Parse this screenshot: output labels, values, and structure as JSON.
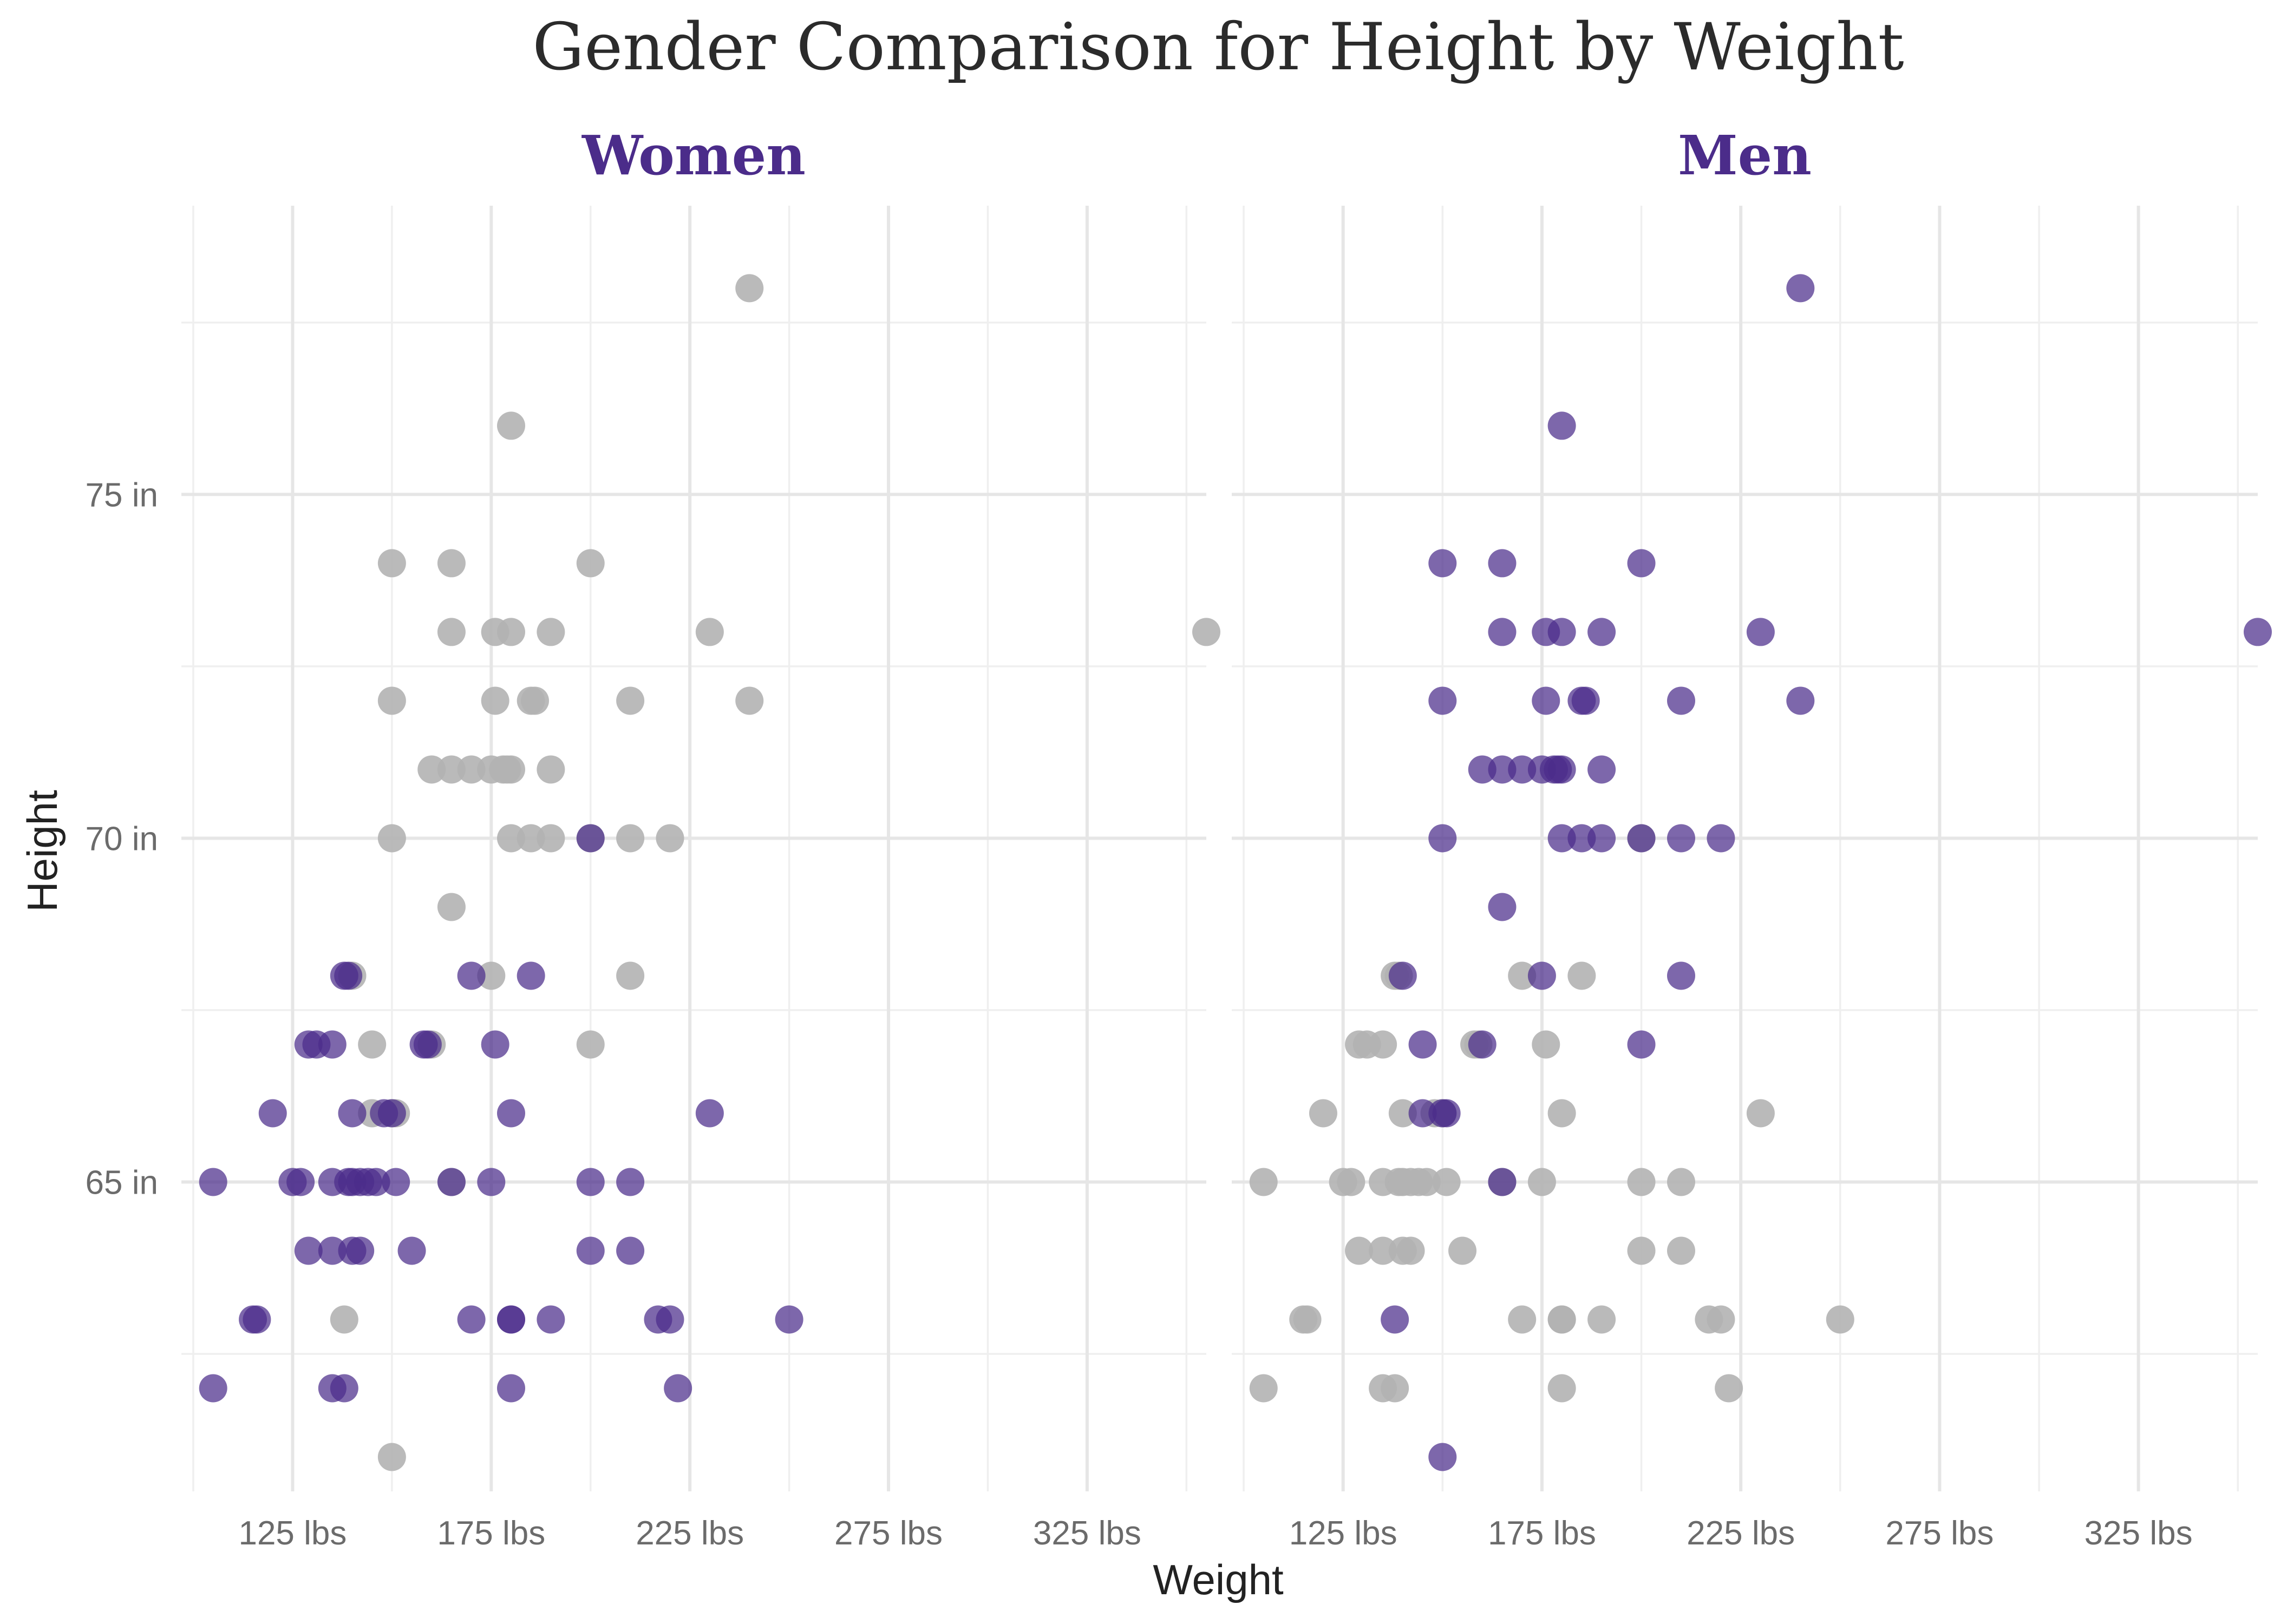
{
  "chart_data": {
    "type": "scatter",
    "title": "Gender Comparison for Height by Weight",
    "xlabel": "Weight",
    "ylabel": "Height",
    "xlim": [
      97,
      355
    ],
    "ylim": [
      60.5,
      79.2
    ],
    "x_ticks": [
      125,
      175,
      225,
      275,
      325
    ],
    "x_tick_labels": [
      "125 lbs",
      "175 lbs",
      "225 lbs",
      "275 lbs",
      "325 lbs"
    ],
    "y_ticks": [
      65,
      70,
      75
    ],
    "y_tick_labels": [
      "65 in",
      "70 in",
      "75 in"
    ],
    "grid": true,
    "colors": {
      "highlight": "#4b2c8a",
      "background": "#b3b3b3"
    },
    "panels": [
      {
        "label": "Women",
        "highlighted_group": "women"
      },
      {
        "label": "Men",
        "highlighted_group": "men"
      }
    ],
    "series": [
      {
        "group": "women",
        "points": [
          [
            105,
            65
          ],
          [
            105,
            62
          ],
          [
            115,
            63
          ],
          [
            116,
            63
          ],
          [
            120,
            66
          ],
          [
            125,
            65
          ],
          [
            127,
            65
          ],
          [
            129,
            64
          ],
          [
            129,
            67
          ],
          [
            131,
            67
          ],
          [
            135,
            65
          ],
          [
            135,
            64
          ],
          [
            135,
            67
          ],
          [
            135,
            62
          ],
          [
            138,
            62
          ],
          [
            138,
            68
          ],
          [
            139,
            68
          ],
          [
            139,
            65
          ],
          [
            140,
            66
          ],
          [
            140,
            65
          ],
          [
            140,
            64
          ],
          [
            142,
            65
          ],
          [
            142,
            64
          ],
          [
            144,
            65
          ],
          [
            146,
            65
          ],
          [
            148,
            66
          ],
          [
            150,
            66
          ],
          [
            151,
            65
          ],
          [
            155,
            64
          ],
          [
            158,
            67
          ],
          [
            159,
            67
          ],
          [
            165,
            65
          ],
          [
            170,
            68
          ],
          [
            170,
            63
          ],
          [
            175,
            65
          ],
          [
            176,
            67
          ],
          [
            180,
            66
          ],
          [
            180,
            63
          ],
          [
            180,
            63
          ],
          [
            180,
            62
          ],
          [
            185,
            68
          ],
          [
            190,
            63
          ],
          [
            200,
            70
          ],
          [
            200,
            65
          ],
          [
            200,
            64
          ],
          [
            210,
            65
          ],
          [
            210,
            64
          ],
          [
            217,
            63
          ],
          [
            220,
            63
          ],
          [
            222,
            62
          ],
          [
            230,
            66
          ],
          [
            250,
            63
          ]
        ]
      },
      {
        "group": "men",
        "points": [
          [
            150,
            74
          ],
          [
            165,
            74
          ],
          [
            200,
            74
          ],
          [
            165,
            73
          ],
          [
            176,
            73
          ],
          [
            180,
            73
          ],
          [
            190,
            73
          ],
          [
            230,
            73
          ],
          [
            355,
            73
          ],
          [
            150,
            72
          ],
          [
            176,
            72
          ],
          [
            185,
            72
          ],
          [
            186,
            72
          ],
          [
            210,
            72
          ],
          [
            240,
            72
          ],
          [
            160,
            71
          ],
          [
            165,
            71
          ],
          [
            170,
            71
          ],
          [
            175,
            71
          ],
          [
            178,
            71
          ],
          [
            179,
            71
          ],
          [
            180,
            71
          ],
          [
            190,
            71
          ],
          [
            150,
            70
          ],
          [
            180,
            70
          ],
          [
            185,
            70
          ],
          [
            190,
            70
          ],
          [
            200,
            70
          ],
          [
            210,
            70
          ],
          [
            220,
            70
          ],
          [
            165,
            69
          ],
          [
            140,
            68
          ],
          [
            175,
            68
          ],
          [
            210,
            68
          ],
          [
            145,
            67
          ],
          [
            160,
            67
          ],
          [
            200,
            67
          ],
          [
            145,
            66
          ],
          [
            150,
            66
          ],
          [
            151,
            66
          ],
          [
            165,
            65
          ],
          [
            138,
            63
          ],
          [
            150,
            61
          ],
          [
            180,
            76
          ],
          [
            240,
            78
          ]
        ]
      }
    ]
  }
}
